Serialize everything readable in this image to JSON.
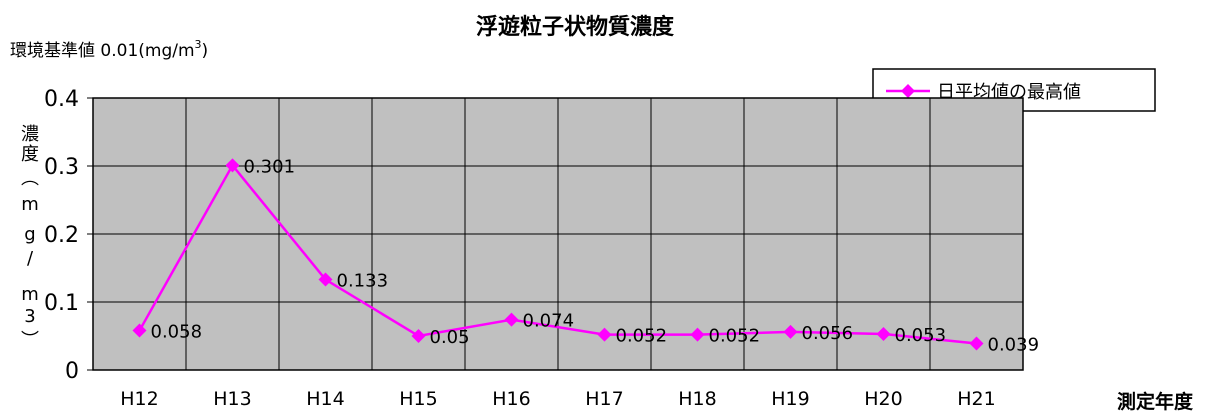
{
  "chart_data": {
    "type": "line",
    "title": "浮遊粒子状物質濃度",
    "standard_text": "環境基準値 0.01(mg/m",
    "standard_sup": "3",
    "standard_close": ")",
    "ylabel_chars": [
      "濃",
      "度",
      "︵",
      "m",
      "g",
      "/",
      "m",
      "3",
      "︶"
    ],
    "xlabel": "測定年度",
    "categories": [
      "H12",
      "H13",
      "H14",
      "H15",
      "H16",
      "H17",
      "H18",
      "H19",
      "H20",
      "H21"
    ],
    "series": [
      {
        "name": "日平均値の最高値",
        "color": "#ff00ff",
        "values": [
          0.058,
          0.301,
          0.133,
          0.05,
          0.074,
          0.052,
          0.052,
          0.056,
          0.053,
          0.039
        ],
        "labels": [
          "0.058",
          "0.301",
          "0.133",
          "0.05",
          "0.074",
          "0.052",
          "0.052",
          "0.056",
          "0.053",
          "0.039"
        ]
      }
    ],
    "yticks": [
      "0",
      "0.1",
      "0.2",
      "0.3",
      "0.4"
    ],
    "ylim": [
      0,
      0.4
    ],
    "grid": true,
    "plot_background": "#c0c0c0",
    "legend_position": "top-right"
  }
}
